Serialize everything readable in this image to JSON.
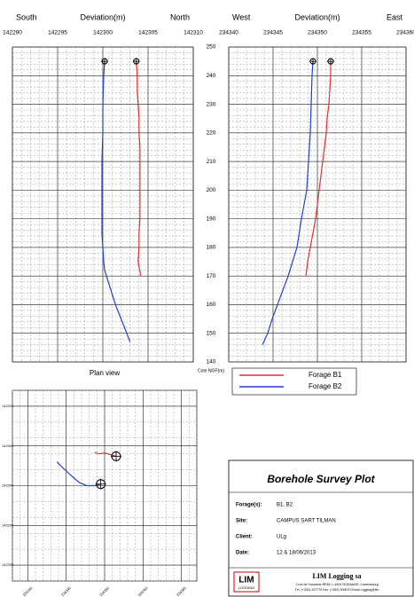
{
  "chart_data": [
    {
      "type": "line",
      "x_label_left": "South",
      "xlabel": "Deviation(m)",
      "x_label_right": "North",
      "xlim": [
        142290,
        142310
      ],
      "xticks": [
        142290,
        142295,
        142300,
        142305,
        142310
      ],
      "ylim": [
        140,
        250
      ],
      "yticks": [
        250,
        240,
        230,
        220,
        210,
        200,
        190,
        180,
        170,
        160,
        150,
        140
      ],
      "grid": true,
      "series": [
        {
          "name": "Forage B1",
          "color": "#e03030",
          "x": [
            142303.7,
            142303.8,
            142303.8,
            142303.9,
            142304.0,
            142304.0,
            142304.1,
            142304.1,
            142304.1,
            142304.1,
            142304.1,
            142304.1,
            142304.0,
            142304.0,
            142303.9,
            142304.2
          ],
          "y": [
            245,
            240,
            235,
            230,
            225,
            220,
            215,
            210,
            205,
            200,
            195,
            190,
            185,
            180,
            175,
            170
          ]
        },
        {
          "name": "Forage B2",
          "color": "#2040d0",
          "x": [
            142300.2,
            142300.1,
            142300.0,
            142300.0,
            142299.9,
            142299.9,
            142299.9,
            142299.9,
            142299.9,
            142300.0,
            142300.1,
            142300.2,
            142300.4,
            142300.8,
            142301.4,
            142302.4,
            142303.0
          ],
          "y": [
            245,
            240,
            230,
            220,
            210,
            200,
            195,
            190,
            185,
            180,
            175,
            172,
            170,
            166,
            160,
            152,
            147
          ]
        }
      ]
    },
    {
      "type": "line",
      "x_label_left": "West",
      "xlabel": "Deviation(m)",
      "x_label_right": "East",
      "xlim": [
        234340,
        234360
      ],
      "xticks": [
        234340,
        234345,
        234350,
        234355,
        234360
      ],
      "ylim": [
        140,
        250
      ],
      "yticks": [
        250,
        240,
        230,
        220,
        210,
        200,
        190,
        180,
        170,
        160,
        150,
        140
      ],
      "grid": true,
      "series": [
        {
          "color": "#e03030",
          "x": [
            234351.5,
            234351.5,
            234351.4,
            234351.3,
            234351.1,
            234351.0,
            234350.8,
            234350.6,
            234350.4,
            234350.2,
            234350.0,
            234349.8,
            234349.5,
            234349.2,
            234348.9,
            234348.7
          ],
          "y": [
            245,
            240,
            235,
            230,
            225,
            220,
            215,
            210,
            205,
            200,
            195,
            190,
            185,
            180,
            175,
            170
          ]
        },
        {
          "color": "#2040d0",
          "x": [
            234349.5,
            234349.4,
            234349.3,
            234349.2,
            234349.0,
            234348.8,
            234348.5,
            234348.2,
            234347.7,
            234347.2,
            234346.7,
            234346.1,
            234345.5,
            234344.9,
            234344.4,
            234343.8
          ],
          "y": [
            245,
            240,
            230,
            220,
            210,
            200,
            195,
            190,
            180,
            175,
            170,
            165,
            160,
            155,
            150,
            146
          ]
        }
      ]
    },
    {
      "type": "line",
      "title": "Plan view",
      "xlim": [
        234338,
        234362
      ],
      "xticks": [
        234340,
        234345,
        234350,
        234355,
        234360
      ],
      "ylim": [
        142288,
        142312
      ],
      "yticks": [
        142310,
        142305,
        142300,
        142295,
        142290
      ],
      "grid": true,
      "series": [
        {
          "color": "#e03030",
          "x": [
            234351.5,
            234350.8,
            234350.0,
            234349.2,
            234348.7
          ],
          "y": [
            142303.7,
            142303.9,
            142304.1,
            142304.0,
            142304.2
          ]
        },
        {
          "color": "#2040d0",
          "x": [
            234349.5,
            234348.8,
            234347.7,
            234346.7,
            234345.5,
            234344.4,
            234343.8
          ],
          "y": [
            142300.2,
            142300.0,
            142300.0,
            142300.4,
            142301.4,
            142302.4,
            142303.0
          ]
        }
      ]
    }
  ],
  "y_axis_label": "Cote NGF(m)",
  "title_block": {
    "title": "Borehole Survey Plot",
    "rows": [
      [
        "Forage(s):",
        "B1, B2"
      ],
      [
        "Site:",
        "CAMPUS SART TILMAN"
      ],
      [
        "Client:",
        "ULg"
      ],
      [
        "Date:",
        "12 & 18/06/2013"
      ]
    ],
    "logo": "LIM",
    "logo_sub": "LOGGING",
    "company": "LIM Logging sa",
    "address": "1 rue de l'industrie BP48, L-4901 RODANGE, Luxembourg",
    "contact": "Tél. (+352) 337770  Fax: (+352) 509070  Email: logging@lim"
  }
}
